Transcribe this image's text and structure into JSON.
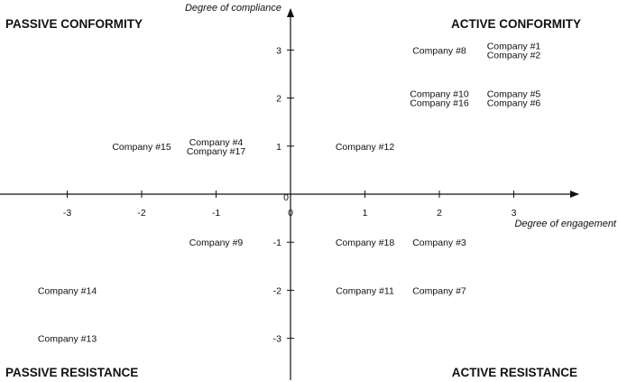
{
  "chart_data": {
    "type": "scatter",
    "xlabel": "Degree of engagement",
    "ylabel": "Degree of compliance",
    "xlim": [
      -3.9,
      3.9
    ],
    "ylim": [
      -3.9,
      3.9
    ],
    "x_ticks": [
      -3,
      -2,
      -1,
      0,
      1,
      2,
      3
    ],
    "y_ticks": [
      -3,
      -2,
      -1,
      0,
      1,
      2,
      3
    ],
    "grid": false,
    "quadrant_labels": {
      "top_left": "PASSIVE CONFORMITY",
      "top_right": "ACTIVE CONFORMITY",
      "bottom_left": "PASSIVE RESISTANCE",
      "bottom_right": "ACTIVE RESISTANCE"
    },
    "points": [
      {
        "label": "Company #1",
        "x": 3,
        "y": 3
      },
      {
        "label": "Company #2",
        "x": 3,
        "y": 3
      },
      {
        "label": "Company #3",
        "x": 2,
        "y": -1
      },
      {
        "label": "Company #4",
        "x": -1,
        "y": 1
      },
      {
        "label": "Company #5",
        "x": 3,
        "y": 2
      },
      {
        "label": "Company #6",
        "x": 3,
        "y": 2
      },
      {
        "label": "Company #7",
        "x": 2,
        "y": -2
      },
      {
        "label": "Company #8",
        "x": 2,
        "y": 3
      },
      {
        "label": "Company #9",
        "x": -1,
        "y": -1
      },
      {
        "label": "Company #10",
        "x": 2,
        "y": 2
      },
      {
        "label": "Company #11",
        "x": 1,
        "y": -2
      },
      {
        "label": "Company #12",
        "x": 1,
        "y": 1
      },
      {
        "label": "Company #13",
        "x": -3,
        "y": -3
      },
      {
        "label": "Company #14",
        "x": -3,
        "y": -2
      },
      {
        "label": "Company #15",
        "x": -2,
        "y": 1
      },
      {
        "label": "Company #16",
        "x": 2,
        "y": 2
      },
      {
        "label": "Company #17",
        "x": -1,
        "y": 1
      },
      {
        "label": "Company #18",
        "x": 1,
        "y": -1
      }
    ]
  }
}
